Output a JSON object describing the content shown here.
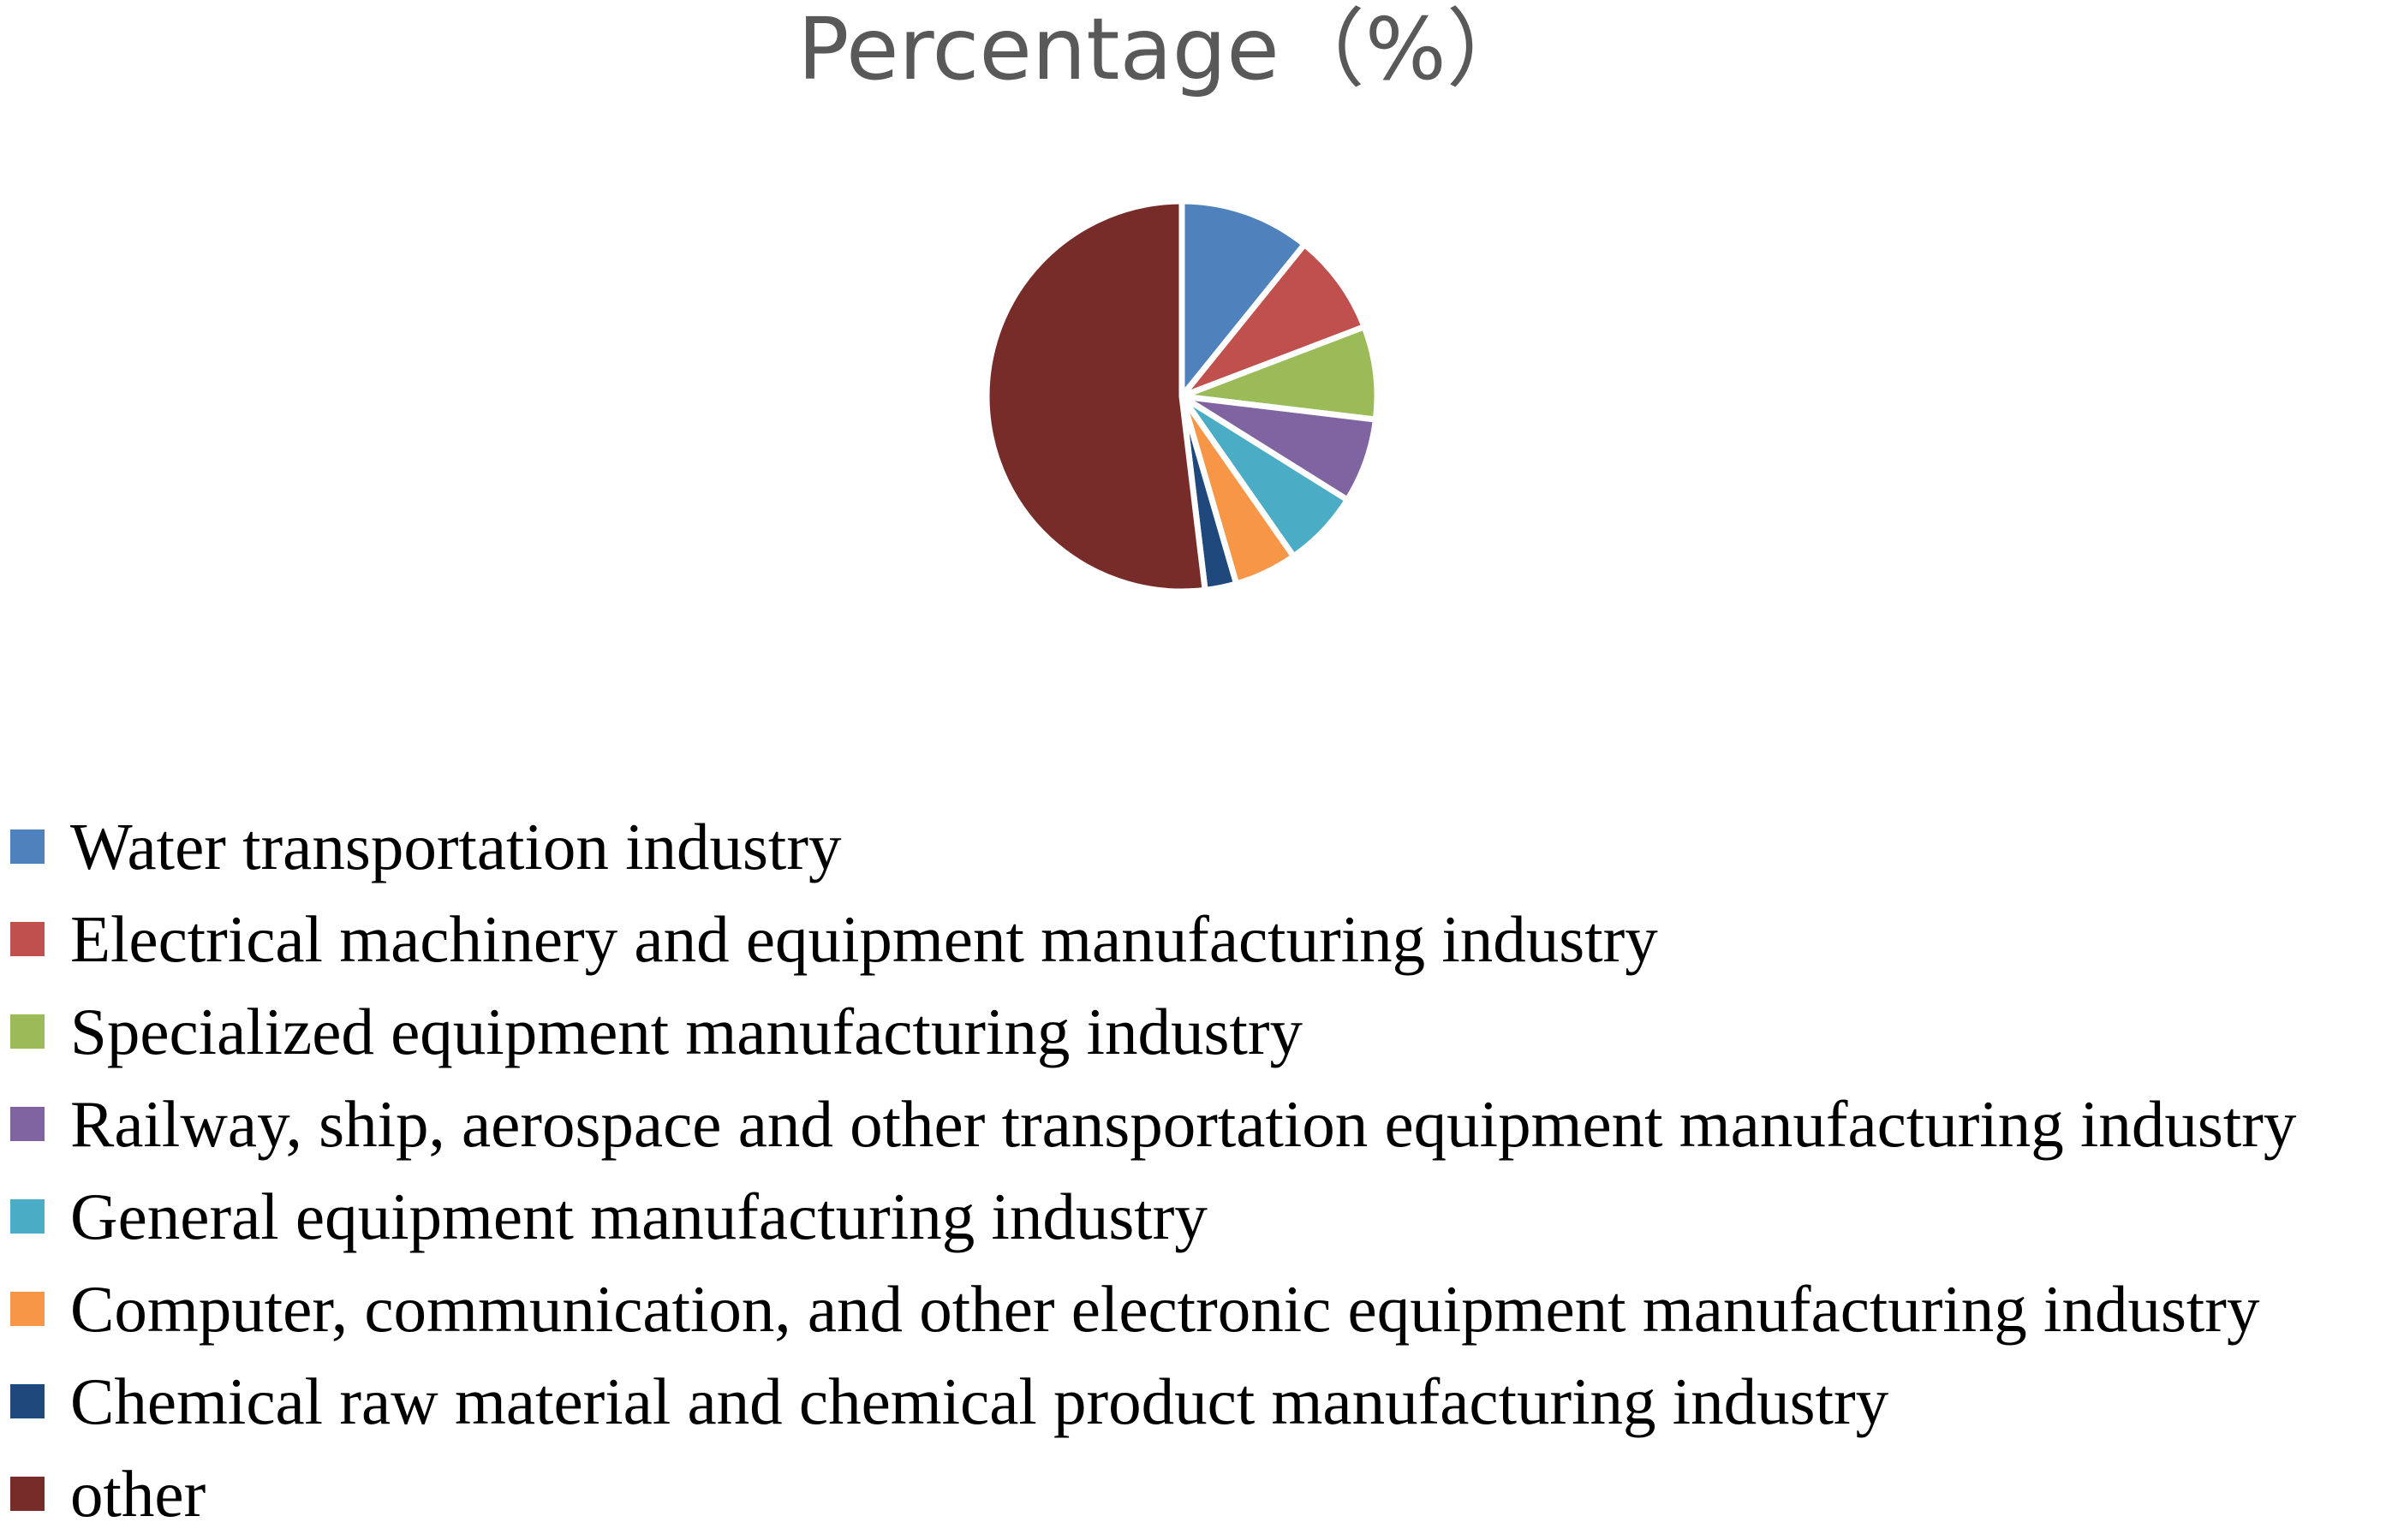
{
  "chart_data": {
    "type": "pie",
    "title": "Percentage（%）",
    "legend_position": "bottom",
    "start_angle_deg": 0,
    "direction": "clockwise",
    "slices": [
      {
        "label": "Water transportation industry",
        "value": 10.8,
        "color": "#4F81BD"
      },
      {
        "label": "Electrical machinery and equipment manufacturing industry",
        "value": 8.4,
        "color": "#C0504D"
      },
      {
        "label": "Specialized equipment manufacturing industry",
        "value": 7.7,
        "color": "#9BBB59"
      },
      {
        "label": "Railway, ship, aerospace and other transportation equipment manufacturing industry",
        "value": 7.0,
        "color": "#8064A2"
      },
      {
        "label": "General equipment manufacturing industry",
        "value": 6.4,
        "color": "#4BACC6"
      },
      {
        "label": "Computer, communication, and other electronic equipment manufacturing industry",
        "value": 5.2,
        "color": "#F79646"
      },
      {
        "label": "Chemical raw material and chemical product manufacturing industry",
        "value": 2.6,
        "color": "#1F497D"
      },
      {
        "label": "other",
        "value": 51.9,
        "color": "#772C2A"
      }
    ]
  }
}
